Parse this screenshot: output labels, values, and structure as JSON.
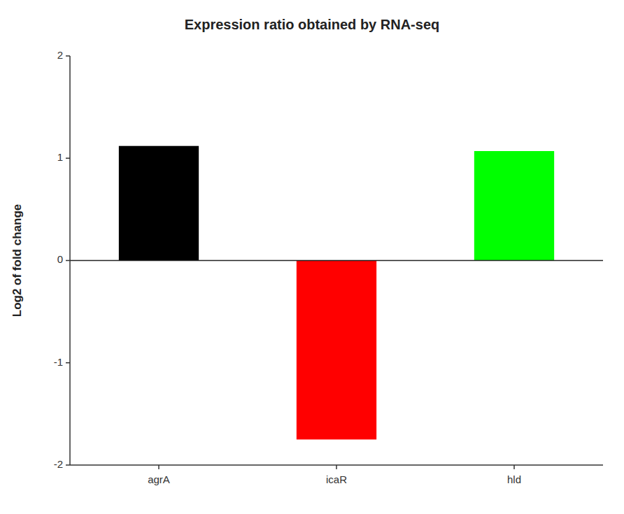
{
  "chart_data": {
    "type": "bar",
    "title": "Expression ratio obtained by RNA-seq",
    "ylabel": "Log2 of fold change",
    "categories": [
      "agrA",
      "icaR",
      "hld"
    ],
    "values": [
      1.12,
      -1.75,
      1.07
    ],
    "colors": [
      "#000000",
      "#ff0000",
      "#00ff00"
    ],
    "ylim": [
      -2,
      2
    ],
    "yticks": [
      -2,
      -1,
      0,
      1,
      2
    ],
    "grid": false
  }
}
